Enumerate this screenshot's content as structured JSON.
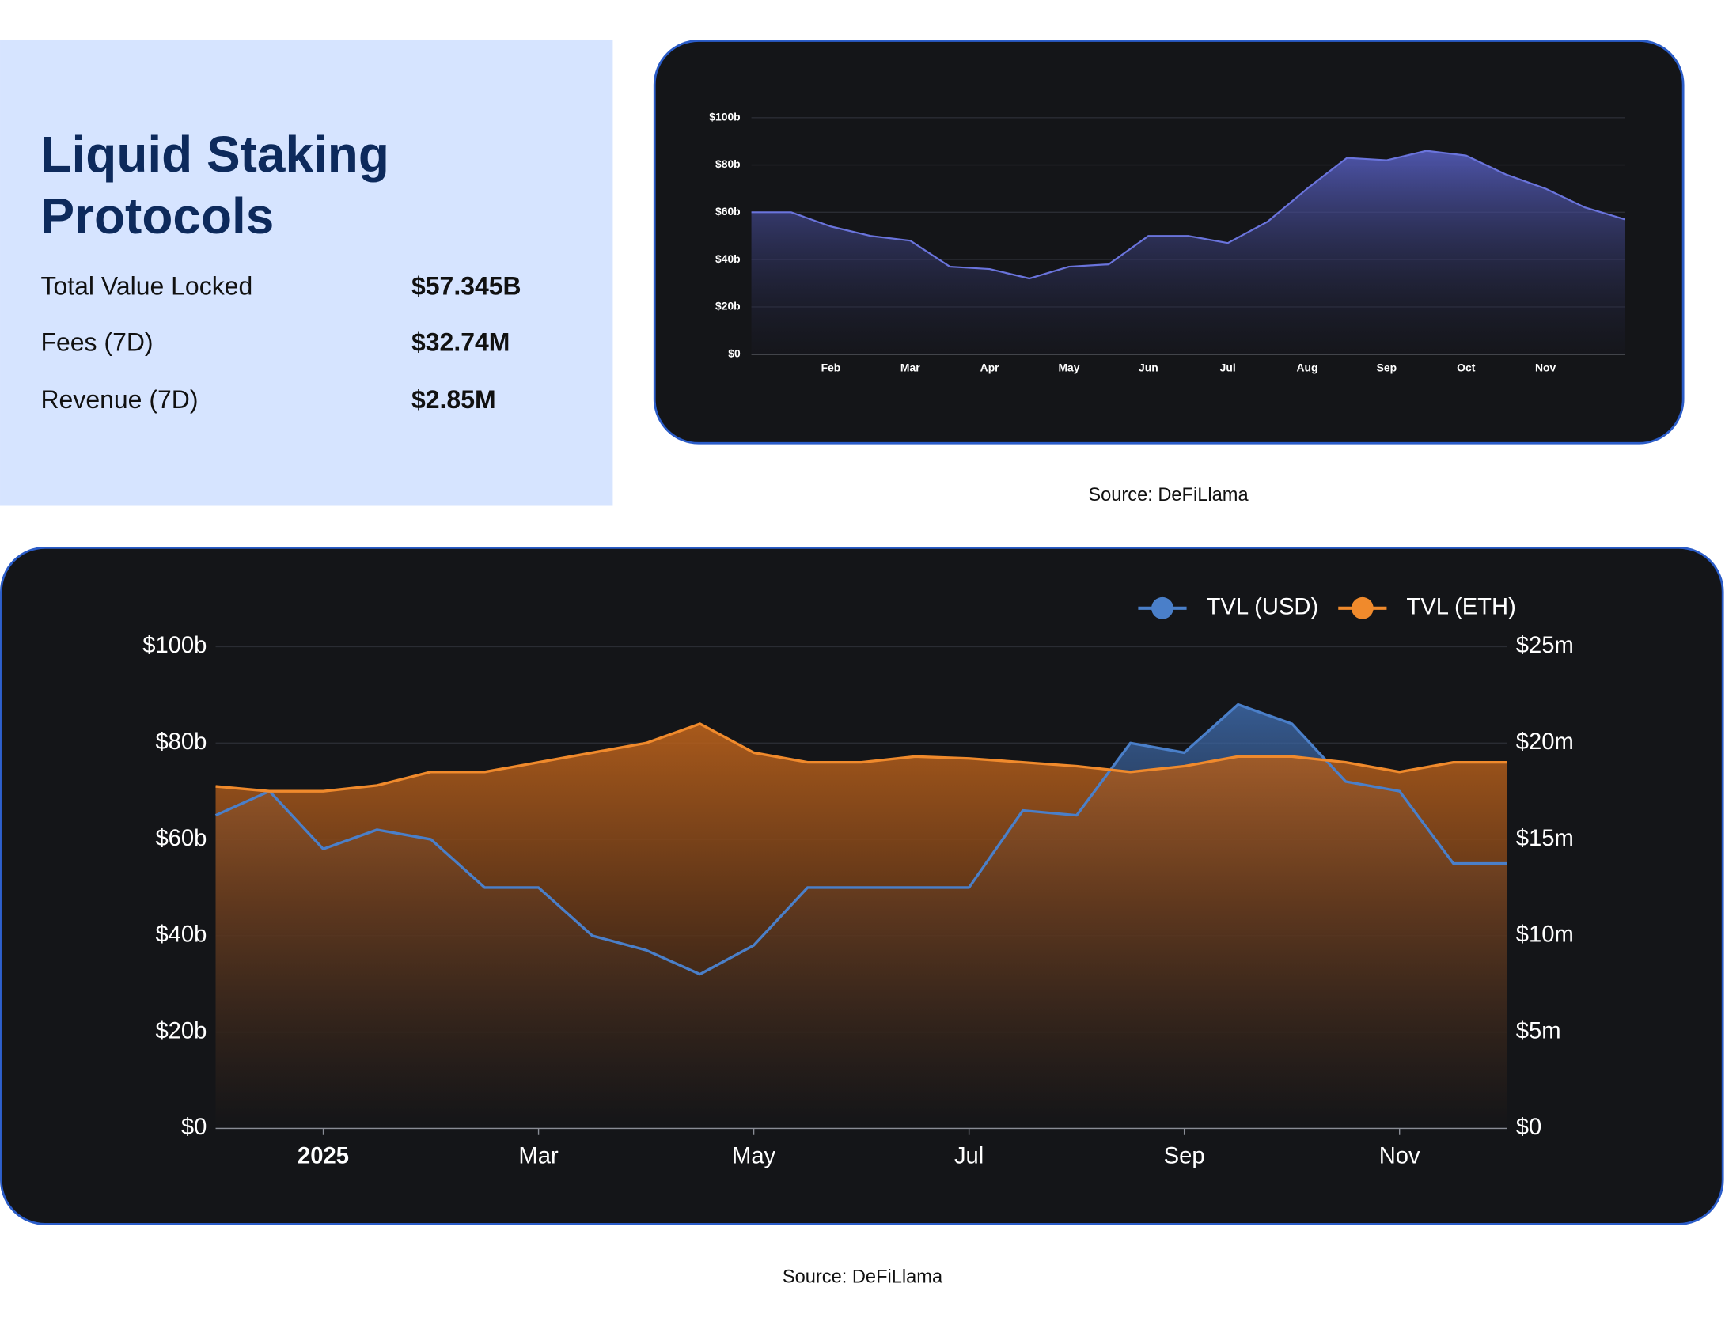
{
  "card": {
    "title_lines": [
      "Liquid Staking",
      "Protocols"
    ],
    "stats": [
      {
        "label": "Total Value Locked",
        "value": "$57.345B"
      },
      {
        "label": "Fees (7D)",
        "value": "$32.74M"
      },
      {
        "label": "Revenue (7D)",
        "value": "$2.85M"
      }
    ]
  },
  "sources": [
    "Source: DeFiLlama",
    "Source: DeFiLlama"
  ],
  "chart_data": [
    {
      "type": "area",
      "categories": [
        null,
        null,
        "Feb",
        null,
        "Mar",
        null,
        "Apr",
        null,
        "May",
        null,
        "Jun",
        null,
        "Jul",
        null,
        "Aug",
        null,
        "Sep",
        null,
        "Oct",
        null,
        "Nov",
        null,
        null
      ],
      "series": [
        {
          "color": "#6a74dc",
          "values": [
            60,
            60,
            54,
            50,
            48,
            37,
            36,
            32,
            37,
            38,
            50,
            50,
            47,
            56,
            70,
            83,
            82,
            86,
            84,
            76,
            70,
            62,
            57
          ]
        }
      ],
      "ylim": [
        0,
        100
      ],
      "yticks": [
        {
          "value": 0,
          "label": "$0"
        },
        {
          "value": 20,
          "label": "$20b"
        },
        {
          "value": 40,
          "label": "$40b"
        },
        {
          "value": 60,
          "label": "$60b"
        },
        {
          "value": 80,
          "label": "$80b"
        },
        {
          "value": 100,
          "label": "$100b"
        }
      ],
      "grid": true
    },
    {
      "type": "area",
      "categories": [
        null,
        null,
        "2025",
        null,
        null,
        null,
        "Mar",
        null,
        null,
        null,
        "May",
        null,
        null,
        null,
        "Jul",
        null,
        null,
        null,
        "Sep",
        null,
        null,
        null,
        "Nov",
        null,
        null
      ],
      "series": [
        {
          "name": "TVL (USD)",
          "color": "#4a7fc9",
          "values": [
            65,
            70,
            58,
            62,
            60,
            50,
            50,
            40,
            37,
            32,
            38,
            50,
            50,
            50,
            50,
            66,
            65,
            80,
            78,
            88,
            84,
            72,
            70,
            55,
            55
          ]
        },
        {
          "name": "TVL (ETH)",
          "color": "#f08a2c",
          "axis": "y2",
          "values": [
            17.75,
            17.5,
            17.5,
            17.8,
            18.5,
            18.5,
            19,
            19.5,
            20,
            21,
            19.5,
            19,
            19,
            19.3,
            19.2,
            19,
            18.8,
            18.5,
            18.8,
            19.3,
            19.3,
            19,
            18.5,
            19,
            19
          ]
        }
      ],
      "ylim": [
        0,
        100
      ],
      "yticks": [
        {
          "value": 0,
          "label": "$0"
        },
        {
          "value": 20,
          "label": "$20b"
        },
        {
          "value": 40,
          "label": "$40b"
        },
        {
          "value": 60,
          "label": "$60b"
        },
        {
          "value": 80,
          "label": "$80b"
        },
        {
          "value": 100,
          "label": "$100b"
        }
      ],
      "y2lim": [
        0,
        25
      ],
      "y2ticks": [
        {
          "value": 0,
          "label": "$0"
        },
        {
          "value": 5,
          "label": "$5m"
        },
        {
          "value": 10,
          "label": "$10m"
        },
        {
          "value": 15,
          "label": "$15m"
        },
        {
          "value": 20,
          "label": "$20m"
        },
        {
          "value": 25,
          "label": "$25m"
        }
      ],
      "grid": true,
      "legend": "top-right"
    }
  ]
}
